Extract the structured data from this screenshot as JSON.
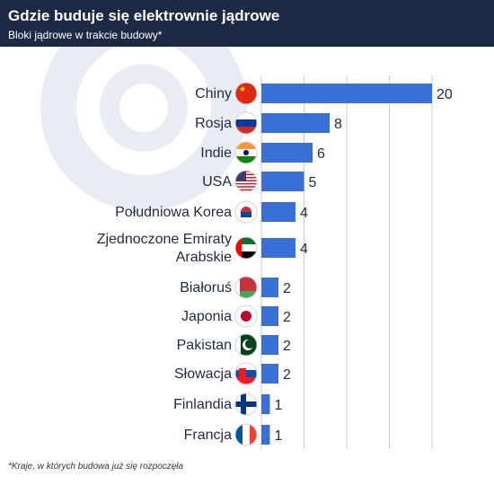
{
  "header": {
    "title": "Gdzie buduje się elektrownie jądrowe",
    "subtitle": "Bloki jądrowe w trakcie budowy*"
  },
  "footnote": "*Kraje, w których budowa już się rozpoczęła",
  "colors": {
    "header_bg": "#1e2a44",
    "bar": "#3a6fd8",
    "text": "#1e2a44",
    "grid": "#cccccc"
  },
  "chart_data": {
    "type": "bar",
    "orientation": "horizontal",
    "title": "Gdzie buduje się elektrownie jądrowe",
    "subtitle": "Bloki jądrowe w trakcie budowy*",
    "categories": [
      {
        "lines": [
          "Chiny"
        ],
        "flag": "china-flag-icon"
      },
      {
        "lines": [
          "Rosja"
        ],
        "flag": "russia-flag-icon"
      },
      {
        "lines": [
          "Indie"
        ],
        "flag": "india-flag-icon"
      },
      {
        "lines": [
          "USA"
        ],
        "flag": "usa-flag-icon"
      },
      {
        "lines": [
          "Południowa Korea"
        ],
        "flag": "south-korea-flag-icon"
      },
      {
        "lines": [
          "Zjednoczone Emiraty",
          "Arabskie"
        ],
        "flag": "uae-flag-icon"
      },
      {
        "lines": [
          "Białoruś"
        ],
        "flag": "belarus-flag-icon"
      },
      {
        "lines": [
          "Japonia"
        ],
        "flag": "japan-flag-icon"
      },
      {
        "lines": [
          "Pakistan"
        ],
        "flag": "pakistan-flag-icon"
      },
      {
        "lines": [
          "Słowacja"
        ],
        "flag": "slovakia-flag-icon"
      },
      {
        "lines": [
          "Finlandia"
        ],
        "flag": "finland-flag-icon"
      },
      {
        "lines": [
          "Francja"
        ],
        "flag": "france-flag-icon"
      }
    ],
    "values": [
      20,
      8,
      6,
      5,
      4,
      4,
      2,
      2,
      2,
      2,
      1,
      1
    ],
    "xlim": [
      0,
      20
    ],
    "grid": true,
    "legend": "none"
  }
}
